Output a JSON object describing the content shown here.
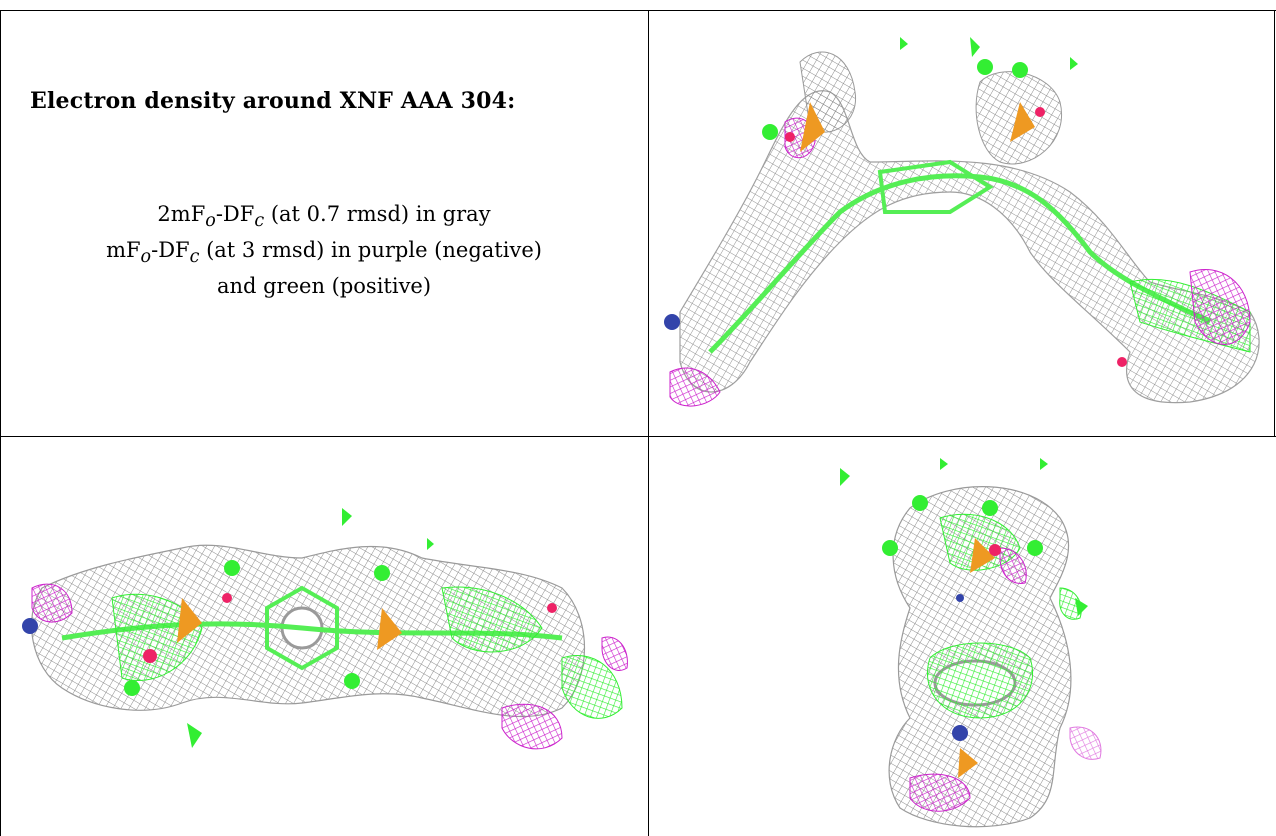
{
  "caption": {
    "title": "Electron density around XNF AAA 304:",
    "line1_a": "2mF",
    "line1_sub_o": "o",
    "line1_b": "-DF",
    "line1_sub_c": "c",
    "line1_c": " (at 0.7 rmsd) in gray",
    "line2_a": "mF",
    "line2_sub_o": "o",
    "line2_b": "-DF",
    "line2_sub_c": "c",
    "line2_c": " (at 3 rmsd) in purple (negative)",
    "line3": "and green (positive)"
  },
  "colors": {
    "mesh_gray": "#8c8c8c",
    "positive_green": "#33ee33",
    "negative_purple": "#cc22cc",
    "oxygen_red": "#ee2266",
    "phosphorus_orange": "#ee9922",
    "nitrogen_blue": "#3344aa",
    "bond_green": "#55ee55"
  },
  "panels": [
    {
      "view": "top-right",
      "icon": "density-view-1-icon"
    },
    {
      "view": "bottom-left",
      "icon": "density-view-2-icon"
    },
    {
      "view": "bottom-right",
      "icon": "density-view-3-icon"
    }
  ]
}
